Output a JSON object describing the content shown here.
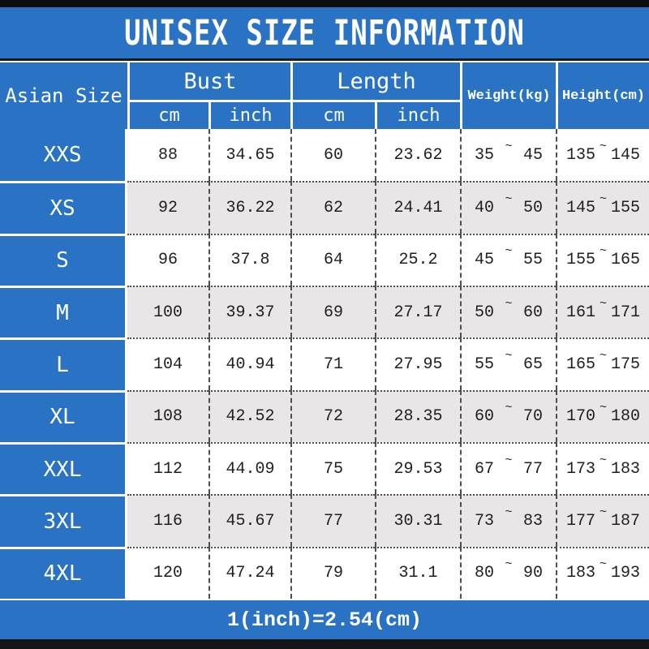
{
  "colors": {
    "blue": "#2a73c4",
    "row_alt": "#e9e6e7",
    "bar_black": "#141414",
    "ink": "#1f1f1f"
  },
  "range_separator": "~",
  "header": {
    "asian_size": "Asian Size",
    "bust": "Bust",
    "length": "Length",
    "cm": "cm",
    "inch": "inch",
    "weight": "Weight(kg)",
    "height": "Height(cm)"
  },
  "chart_data": {
    "type": "table",
    "title": "UNISEX SIZE INFORMATION",
    "footnote": "1(inch)=2.54(cm)",
    "columns": [
      "Asian Size",
      "Bust cm",
      "Bust inch",
      "Length cm",
      "Length inch",
      "Weight(kg)",
      "Height(cm)"
    ],
    "rows": [
      {
        "size": "XXS",
        "bust_cm": "88",
        "bust_inch": "34.65",
        "length_cm": "60",
        "length_inch": "23.62",
        "weight_min": "35",
        "weight_max": "45",
        "height_min": "135",
        "height_max": "145"
      },
      {
        "size": "XS",
        "bust_cm": "92",
        "bust_inch": "36.22",
        "length_cm": "62",
        "length_inch": "24.41",
        "weight_min": "40",
        "weight_max": "50",
        "height_min": "145",
        "height_max": "155"
      },
      {
        "size": "S",
        "bust_cm": "96",
        "bust_inch": "37.8",
        "length_cm": "64",
        "length_inch": "25.2",
        "weight_min": "45",
        "weight_max": "55",
        "height_min": "155",
        "height_max": "165"
      },
      {
        "size": "M",
        "bust_cm": "100",
        "bust_inch": "39.37",
        "length_cm": "69",
        "length_inch": "27.17",
        "weight_min": "50",
        "weight_max": "60",
        "height_min": "161",
        "height_max": "171"
      },
      {
        "size": "L",
        "bust_cm": "104",
        "bust_inch": "40.94",
        "length_cm": "71",
        "length_inch": "27.95",
        "weight_min": "55",
        "weight_max": "65",
        "height_min": "165",
        "height_max": "175"
      },
      {
        "size": "XL",
        "bust_cm": "108",
        "bust_inch": "42.52",
        "length_cm": "72",
        "length_inch": "28.35",
        "weight_min": "60",
        "weight_max": "70",
        "height_min": "170",
        "height_max": "180"
      },
      {
        "size": "XXL",
        "bust_cm": "112",
        "bust_inch": "44.09",
        "length_cm": "75",
        "length_inch": "29.53",
        "weight_min": "67",
        "weight_max": "77",
        "height_min": "173",
        "height_max": "183"
      },
      {
        "size": "3XL",
        "bust_cm": "116",
        "bust_inch": "45.67",
        "length_cm": "77",
        "length_inch": "30.31",
        "weight_min": "73",
        "weight_max": "83",
        "height_min": "177",
        "height_max": "187"
      },
      {
        "size": "4XL",
        "bust_cm": "120",
        "bust_inch": "47.24",
        "length_cm": "79",
        "length_inch": "31.1",
        "weight_min": "80",
        "weight_max": "90",
        "height_min": "183",
        "height_max": "193"
      }
    ]
  }
}
